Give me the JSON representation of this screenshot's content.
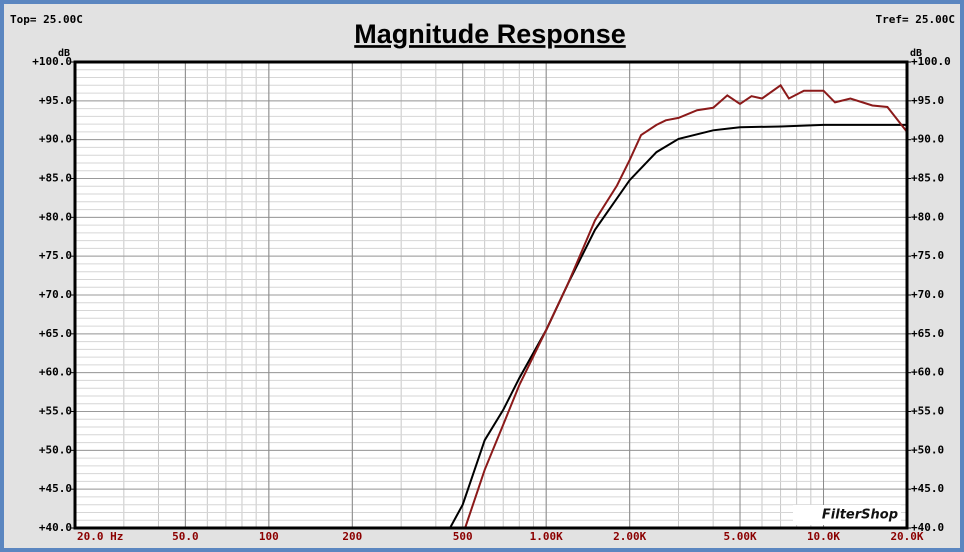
{
  "chart_data": {
    "type": "line",
    "title": "Magnitude Response",
    "top_left": "Top= 25.00C",
    "top_right": "Tref= 25.00C",
    "y_label": "dB",
    "y2_label": "dB",
    "watermark": "FilterShop",
    "x_log": true,
    "grid": true,
    "xlim": [
      20,
      20000
    ],
    "ylim": [
      40,
      100
    ],
    "xticks": [
      {
        "value": 20,
        "label": "20.0 Hz"
      },
      {
        "value": 50,
        "label": "50.0"
      },
      100,
      200,
      500,
      {
        "value": 1000,
        "label": "1.00K"
      },
      {
        "value": 2000,
        "label": "2.00K"
      },
      {
        "value": 5000,
        "label": "5.00K"
      },
      {
        "value": 10000,
        "label": "10.0K"
      },
      {
        "value": 20000,
        "label": "20.0K"
      }
    ],
    "yticks": [
      {
        "value": 40,
        "label": "+40.0"
      },
      {
        "value": 45,
        "label": "+45.0"
      },
      {
        "value": 50,
        "label": "+50.0"
      },
      {
        "value": 55,
        "label": "+55.0"
      },
      {
        "value": 60,
        "label": "+60.0"
      },
      {
        "value": 65,
        "label": "+65.0"
      },
      {
        "value": 70,
        "label": "+70.0"
      },
      {
        "value": 75,
        "label": "+75.0"
      },
      {
        "value": 80,
        "label": "+80.0"
      },
      {
        "value": 85,
        "label": "+85.0"
      },
      {
        "value": 90,
        "label": "+90.0"
      },
      {
        "value": 95,
        "label": "+95.0"
      },
      {
        "value": 100,
        "label": "+100.0"
      }
    ],
    "series": [
      {
        "color": "#000000",
        "x": [
          20,
          450,
          500,
          600,
          700,
          800,
          1000,
          1200,
          1500,
          2000,
          2500,
          3000,
          4000,
          5000,
          7000,
          10000,
          20000
        ],
        "values": [
          40,
          40,
          43,
          51.3,
          55.2,
          59.3,
          65.5,
          71.5,
          78.4,
          84.8,
          88.4,
          90.1,
          91.2,
          91.6,
          91.7,
          91.9,
          91.9
        ]
      },
      {
        "color": "#8b1a1a",
        "x": [
          20,
          510,
          600,
          700,
          800,
          1000,
          1200,
          1500,
          1800,
          2000,
          2200,
          2500,
          2700,
          3000,
          3500,
          4000,
          4500,
          5000,
          5500,
          6000,
          7000,
          7500,
          8500,
          10000,
          11000,
          12500,
          15000,
          17000,
          20000
        ],
        "values": [
          40,
          40,
          47.5,
          53.3,
          58.4,
          65.5,
          71.5,
          79.6,
          84.1,
          87.4,
          90.6,
          91.9,
          92.5,
          92.8,
          93.8,
          94.1,
          95.7,
          94.6,
          95.6,
          95.3,
          97,
          95.3,
          96.3,
          96.3,
          94.8,
          95.3,
          94.4,
          94.2,
          91
        ]
      }
    ]
  }
}
